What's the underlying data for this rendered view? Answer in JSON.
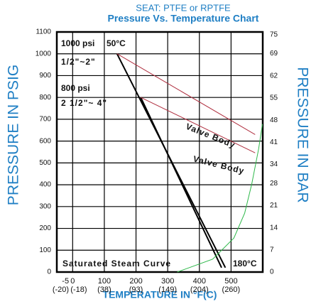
{
  "chart_data": {
    "type": "line",
    "subtitle": "SEAT: PTFE or RPTFE",
    "title": "Pressure Vs. Temperature Chart",
    "y_label": "PRESSURE IN PSIG",
    "y2_label": "PRESSURE IN BAR",
    "x_label": "TEMPERATURE  IN  °F(C)",
    "xlim": [
      -50,
      600
    ],
    "xticks": [
      -5,
      0,
      100,
      200,
      300,
      400,
      500
    ],
    "xtick_celsius": [
      "(-20)",
      "(-18)",
      "(38)",
      "(93)",
      "(149)",
      "(204)",
      "(260)"
    ],
    "ylim": [
      0,
      1100
    ],
    "yticks": [
      0,
      100,
      200,
      300,
      400,
      500,
      600,
      700,
      800,
      900,
      1000,
      1100
    ],
    "y2lim": [
      0,
      75.86
    ],
    "y2ticks": [
      0,
      7,
      14,
      21,
      28,
      34,
      41,
      48,
      55,
      62,
      69,
      75
    ],
    "grid": true,
    "series": [
      {
        "name": "1/2\"~2\"",
        "color": "#000000",
        "x": [
          140,
          482
        ],
        "values": [
          1000,
          20
        ]
      },
      {
        "name": "2 1/2\"~ 4\"",
        "color": "#000000",
        "x": [
          215,
          470
        ],
        "values": [
          800,
          20
        ]
      },
      {
        "name": "Valve Body",
        "color": "#b03040",
        "x": [
          140,
          576
        ],
        "values": [
          1000,
          630
        ]
      },
      {
        "name": "Valve Body",
        "color": "#b03040",
        "x": [
          215,
          576
        ],
        "values": [
          800,
          546
        ]
      },
      {
        "name": "Saturated Steam Curve",
        "color": "#2eb84a",
        "x": [
          330,
          442,
          509,
          543,
          565,
          587,
          599
        ],
        "values": [
          0,
          59,
          156,
          270,
          401,
          564,
          678
        ]
      }
    ],
    "annotations": [
      "1000 psi",
      "50°C",
      "800 psi",
      "180°C"
    ]
  }
}
